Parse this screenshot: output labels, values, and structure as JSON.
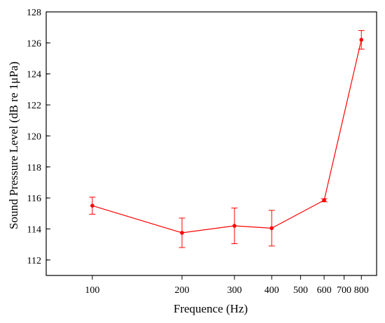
{
  "chart_data": {
    "type": "line",
    "xlabel": "Frequence (Hz)",
    "ylabel": "Sound Pressure Level (dB re 1μPa)",
    "x_scale": "log",
    "xlim": [
      70,
      900
    ],
    "ylim": [
      111,
      128
    ],
    "x_ticks": [
      100,
      200,
      300,
      400,
      500,
      600,
      700,
      800
    ],
    "x_tick_labels": [
      "100",
      "200",
      "300",
      "400",
      "500",
      "600",
      "700",
      "800"
    ],
    "y_ticks": [
      112,
      114,
      116,
      118,
      120,
      122,
      124,
      126,
      128
    ],
    "y_tick_labels": [
      "112",
      "114",
      "116",
      "118",
      "120",
      "122",
      "124",
      "126",
      "128"
    ],
    "grid": false,
    "series": [
      {
        "x": [
          100,
          200,
          300,
          400,
          600,
          800
        ],
        "y": [
          115.5,
          113.75,
          114.2,
          114.05,
          115.85,
          126.2
        ],
        "error": [
          0.55,
          0.95,
          1.15,
          1.15,
          0.1,
          0.6
        ],
        "color": "#ff0000"
      }
    ]
  }
}
